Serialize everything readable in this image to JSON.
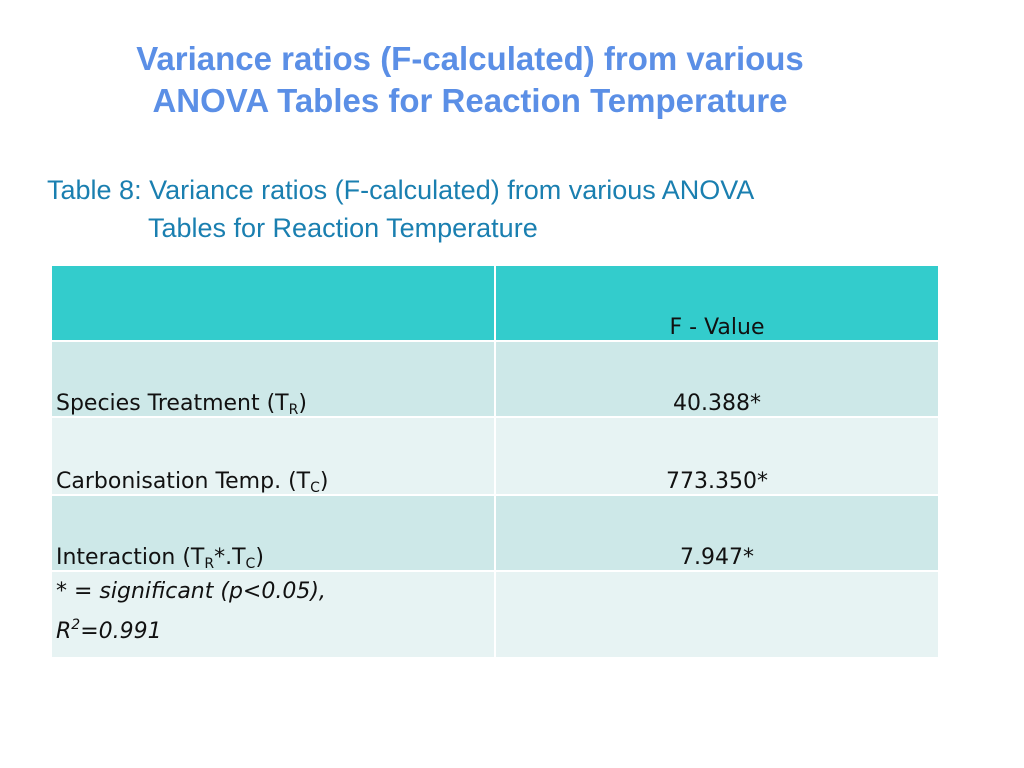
{
  "title": {
    "line1": "Variance ratios (F-calculated) from various",
    "line2": "ANOVA Tables for Reaction Temperature"
  },
  "caption": {
    "line1": "Table 8: Variance ratios (F-calculated) from various ANOVA",
    "line2": "Tables for Reaction Temperature"
  },
  "table": {
    "header": {
      "col1": "",
      "col2": "F - Value"
    },
    "rows": [
      {
        "label_main": "Species Treatment (T",
        "label_sub": "R",
        "label_end": ")",
        "value": "40.388*"
      },
      {
        "label_main": "Carbonisation Temp. (T",
        "label_sub": "C",
        "label_end": ")",
        "value": "773.350*"
      },
      {
        "label_main": "Interaction (T",
        "label_sub": "R",
        "label_mid": "*.T",
        "label_sub2": "C",
        "label_end": ")",
        "value": "7.947*"
      }
    ],
    "note": {
      "line1": "*  = significant (p<0.05),",
      "r_base": "R",
      "r_sup": "2",
      "r_rest": "=0.991"
    }
  },
  "colors": {
    "title": "#5b8fe6",
    "caption": "#1a7fb0",
    "header_bg": "#33cccc",
    "row_dark": "#cde8e8",
    "row_light": "#e7f3f3"
  }
}
